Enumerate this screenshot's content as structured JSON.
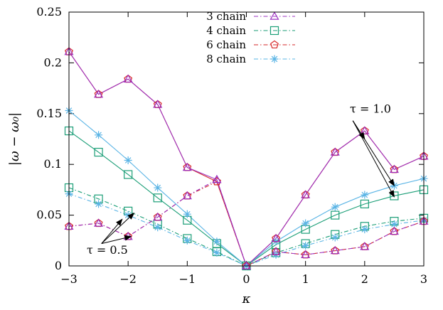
{
  "chart_data": {
    "type": "line",
    "xlabel": "κ",
    "ylabel": "|ω − ω₀|",
    "xlim": [
      -3,
      3
    ],
    "ylim": [
      0,
      0.25
    ],
    "xticks": [
      -3,
      -2,
      -1,
      0,
      1,
      2,
      3
    ],
    "xtick_labels": [
      "−3",
      "−2",
      "−1",
      "0",
      "1",
      "2",
      "3"
    ],
    "yticks": [
      0,
      0.05,
      0.1,
      0.15,
      0.2,
      0.25
    ],
    "ytick_labels": [
      "0",
      "0.05",
      "0.1",
      "0.15",
      "0.2",
      "0.25"
    ],
    "grid": false,
    "legend_position": "top-center",
    "x": [
      -3,
      -2.5,
      -2,
      -1.5,
      -1,
      -0.5,
      0,
      0.5,
      1,
      1.5,
      2,
      2.5,
      3
    ],
    "series": [
      {
        "name": "3 chain",
        "color": "#9b30c0",
        "marker": "triangle",
        "tau_1": [
          0.211,
          0.169,
          0.184,
          0.159,
          0.097,
          0.085,
          0.0,
          0.027,
          0.07,
          0.112,
          0.133,
          0.095,
          0.108
        ],
        "tau_05": [
          0.039,
          0.042,
          0.029,
          0.048,
          0.069,
          0.085,
          0.0,
          0.014,
          0.011,
          0.015,
          0.019,
          0.034,
          0.044
        ]
      },
      {
        "name": "4 chain",
        "color": "#1b9e77",
        "marker": "square",
        "tau_1": [
          0.133,
          0.112,
          0.09,
          0.067,
          0.045,
          0.022,
          0.0,
          0.021,
          0.036,
          0.05,
          0.061,
          0.069,
          0.075
        ],
        "tau_05": [
          0.077,
          0.066,
          0.054,
          0.041,
          0.027,
          0.014,
          0.0,
          0.013,
          0.022,
          0.031,
          0.039,
          0.044,
          0.047
        ]
      },
      {
        "name": "6 chain",
        "color": "#d62728",
        "marker": "pentagon",
        "tau_1": [
          0.211,
          0.169,
          0.184,
          0.159,
          0.097,
          0.083,
          0.0,
          0.027,
          0.07,
          0.112,
          0.133,
          0.095,
          0.108
        ],
        "tau_05": [
          0.039,
          0.042,
          0.029,
          0.048,
          0.069,
          0.083,
          0.0,
          0.014,
          0.011,
          0.015,
          0.019,
          0.034,
          0.044
        ]
      },
      {
        "name": "8 chain",
        "color": "#5ab4e5",
        "marker": "star",
        "tau_1": [
          0.153,
          0.129,
          0.104,
          0.077,
          0.051,
          0.024,
          0.0,
          0.024,
          0.042,
          0.058,
          0.07,
          0.079,
          0.086
        ],
        "tau_05": [
          0.071,
          0.061,
          0.05,
          0.038,
          0.025,
          0.013,
          0.0,
          0.011,
          0.02,
          0.028,
          0.036,
          0.041,
          0.045
        ]
      }
    ],
    "annotations": [
      {
        "text": "τ = 1.0",
        "text_at": [
          1.75,
          0.151
        ],
        "arrow_from": [
          1.8,
          0.143
        ],
        "arrow_to": [
          [
            2.0,
            0.125
          ],
          [
            2.5,
            0.068
          ],
          [
            2.5,
            0.079
          ]
        ]
      },
      {
        "text": "τ = 0.5",
        "text_at": [
          -2.7,
          0.012
        ],
        "arrow_from": [
          -2.45,
          0.022
        ],
        "arrow_to": [
          [
            -2.1,
            0.046
          ],
          [
            -1.95,
            0.029
          ],
          [
            -1.9,
            0.052
          ]
        ]
      }
    ]
  }
}
